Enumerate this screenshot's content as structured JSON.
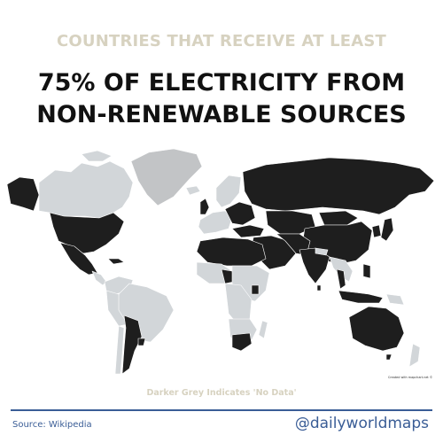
{
  "header": {
    "kicker": "COUNTRIES THAT RECEIVE AT LEAST",
    "title_line1": "75% OF ELECTRICITY FROM",
    "title_line2": "NON-RENEWABLE SOURCES"
  },
  "map": {
    "credit": "Created with mapchart.net ©",
    "legend_note": "Darker Grey Indicates 'No Data'",
    "colors": {
      "qualifying": "#1e1e1e",
      "not_qualifying": "#d2d6d9",
      "no_data": "#c2c4c6",
      "border": "#ffffff"
    }
  },
  "footer": {
    "source": "Source: Wikipedia",
    "handle": "@dailyworldmaps",
    "rule_color": "#3a5d96"
  }
}
